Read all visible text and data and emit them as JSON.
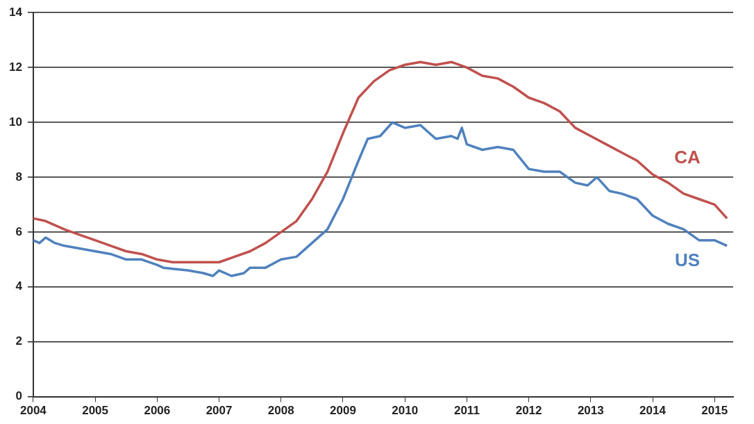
{
  "chart_data": {
    "type": "line",
    "xlim": [
      2004,
      2015.3
    ],
    "xticks": [
      2004,
      2005,
      2006,
      2007,
      2008,
      2009,
      2010,
      2011,
      2012,
      2013,
      2014,
      2015
    ],
    "ylim": [
      0,
      14
    ],
    "yticks": [
      0,
      2,
      4,
      6,
      8,
      10,
      12,
      14
    ],
    "grid": "y",
    "legend": false,
    "marker": "none",
    "line_style": "solid",
    "series": [
      {
        "name": "CA",
        "color": "#c0504d",
        "x": [
          2004,
          2004.2,
          2004.5,
          2004.75,
          2005,
          2005.25,
          2005.5,
          2005.75,
          2006,
          2006.25,
          2006.5,
          2006.75,
          2007,
          2007.25,
          2007.5,
          2007.75,
          2008,
          2008.25,
          2008.5,
          2008.75,
          2009,
          2009.25,
          2009.5,
          2009.75,
          2010,
          2010.25,
          2010.5,
          2010.75,
          2011,
          2011.25,
          2011.5,
          2011.75,
          2012,
          2012.25,
          2012.5,
          2012.75,
          2013,
          2013.25,
          2013.5,
          2013.75,
          2014,
          2014.25,
          2014.5,
          2014.75,
          2015,
          2015.2
        ],
        "values": [
          6.5,
          6.4,
          6.1,
          5.9,
          5.7,
          5.5,
          5.3,
          5.2,
          5.0,
          4.9,
          4.9,
          4.9,
          4.9,
          5.1,
          5.3,
          5.6,
          6.0,
          6.4,
          7.2,
          8.2,
          9.6,
          10.9,
          11.5,
          11.9,
          12.1,
          12.2,
          12.1,
          12.2,
          12.0,
          11.7,
          11.6,
          11.3,
          10.9,
          10.7,
          10.4,
          9.8,
          9.5,
          9.2,
          8.9,
          8.6,
          8.1,
          7.8,
          7.4,
          7.2,
          7.0,
          6.5
        ]
      },
      {
        "name": "US",
        "color": "#4f81bd",
        "x": [
          2004,
          2004.1,
          2004.2,
          2004.35,
          2004.5,
          2004.75,
          2005,
          2005.25,
          2005.5,
          2005.75,
          2006,
          2006.1,
          2006.5,
          2006.75,
          2006.9,
          2007,
          2007.2,
          2007.4,
          2007.5,
          2007.75,
          2008,
          2008.25,
          2008.5,
          2008.75,
          2009,
          2009.25,
          2009.4,
          2009.6,
          2009.8,
          2010,
          2010.25,
          2010.5,
          2010.75,
          2010.85,
          2010.92,
          2011,
          2011.25,
          2011.5,
          2011.75,
          2012,
          2012.25,
          2012.5,
          2012.75,
          2012.95,
          2013.1,
          2013.3,
          2013.5,
          2013.75,
          2014,
          2014.25,
          2014.5,
          2014.75,
          2015,
          2015.2
        ],
        "values": [
          5.7,
          5.6,
          5.8,
          5.6,
          5.5,
          5.4,
          5.3,
          5.2,
          5.0,
          5.0,
          4.8,
          4.7,
          4.6,
          4.5,
          4.4,
          4.6,
          4.4,
          4.5,
          4.7,
          4.7,
          5.0,
          5.1,
          5.6,
          6.1,
          7.2,
          8.6,
          9.4,
          9.5,
          10.0,
          9.8,
          9.9,
          9.4,
          9.5,
          9.4,
          9.8,
          9.2,
          9.0,
          9.1,
          9.0,
          8.3,
          8.2,
          8.2,
          7.8,
          7.7,
          8.0,
          7.5,
          7.4,
          7.2,
          6.6,
          6.3,
          6.1,
          5.7,
          5.7,
          5.5
        ]
      }
    ]
  }
}
